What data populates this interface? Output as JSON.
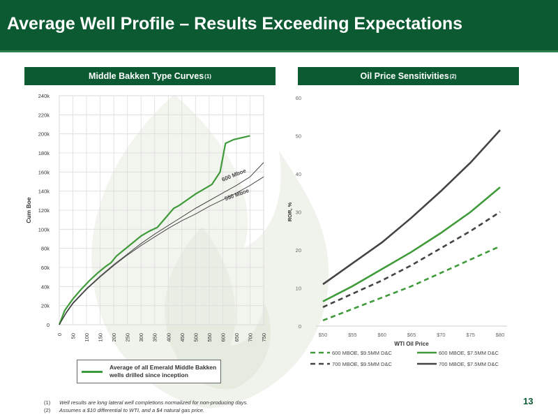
{
  "header": {
    "title": "Average Well Profile – Results Exceeding Expectations"
  },
  "left_panel": {
    "title": "Middle Bakken Type Curves",
    "sup": "(1)"
  },
  "right_panel": {
    "title": "Oil Price Sensitivities",
    "sup": "(2)"
  },
  "legend_left": {
    "label": "Average of all Emerald Middle Bakken wells drilled since inception",
    "color": "#3f9a3a"
  },
  "footnotes": [
    {
      "num": "(1)",
      "text": "Well results are long lateral well completions normalized for non-producing days."
    },
    {
      "num": "(2)",
      "text": "Assumes a $10 differential to WTI, and a $4 natural gas price."
    }
  ],
  "page_number": "13",
  "colors": {
    "header_green": "#0c5a32",
    "bright_green": "#3f9a3a",
    "dark_gray": "#444444"
  },
  "chart_data": [
    {
      "type": "line",
      "ylabel": "Cum Boe",
      "xlabel": "",
      "x_ticks": [
        "0",
        "50",
        "100",
        "150",
        "200",
        "250",
        "300",
        "350",
        "400",
        "450",
        "500",
        "550",
        "600",
        "650",
        "700",
        "750"
      ],
      "y_ticks": [
        "0",
        "20k",
        "40k",
        "60k",
        "80k",
        "100k",
        "120k",
        "140k",
        "160k",
        "180k",
        "200k",
        "220k",
        "240k"
      ],
      "xlim": [
        0,
        750
      ],
      "ylim": [
        0,
        240000
      ],
      "grid": true,
      "series": [
        {
          "name": "Average of all Emerald Middle Bakken wells drilled since inception",
          "color": "#3f9a3a",
          "x": [
            0,
            20,
            50,
            80,
            110,
            140,
            170,
            190,
            210,
            240,
            270,
            300,
            330,
            360,
            390,
            420,
            440,
            470,
            500,
            530,
            560,
            590,
            610,
            640,
            700
          ],
          "y": [
            0,
            15000,
            27000,
            37000,
            46000,
            54000,
            61000,
            65000,
            72000,
            79000,
            86000,
            93000,
            98000,
            102000,
            112000,
            122000,
            125000,
            131000,
            137000,
            142000,
            147000,
            160000,
            190000,
            194000,
            198000
          ]
        },
        {
          "name": "600 Mboe",
          "color": "#333333",
          "x": [
            0,
            25,
            50,
            100,
            150,
            200,
            250,
            300,
            350,
            400,
            450,
            500,
            550,
            600,
            650,
            700,
            750
          ],
          "y": [
            0,
            13000,
            23000,
            38000,
            51000,
            63000,
            74000,
            85000,
            95000,
            104000,
            113000,
            122000,
            130000,
            138000,
            146000,
            155000,
            170000
          ]
        },
        {
          "name": "550 Mboe",
          "color": "#333333",
          "x": [
            0,
            25,
            50,
            100,
            150,
            200,
            250,
            300,
            350,
            400,
            450,
            500,
            550,
            600,
            650,
            700,
            750
          ],
          "y": [
            0,
            12000,
            22000,
            37000,
            50000,
            62000,
            73000,
            83000,
            92000,
            101000,
            109000,
            116000,
            124000,
            131000,
            138000,
            146000,
            155000
          ]
        }
      ],
      "annotations": [
        "600 Mboe",
        "550 Mboe"
      ]
    },
    {
      "type": "line",
      "xlabel": "WTI Oil Price",
      "ylabel": "ROR, %",
      "categories": [
        "$50",
        "$55",
        "$60",
        "$65",
        "$70",
        "$75",
        "$80"
      ],
      "y_ticks": [
        "0",
        "10",
        "20",
        "30",
        "40",
        "50",
        "60"
      ],
      "ylim": [
        0,
        60
      ],
      "grid": false,
      "legend_position": "bottom",
      "series": [
        {
          "name": "600 MBOE, $9.5MM D&C",
          "color": "#3f9a3a",
          "dashed": true,
          "values": [
            1.5,
            4.5,
            7.5,
            10.5,
            14.0,
            17.5,
            21.0
          ]
        },
        {
          "name": "600 MBOE, $7.5MM D&C",
          "color": "#3f9a3a",
          "dashed": false,
          "values": [
            6.5,
            10.5,
            15.0,
            19.5,
            24.5,
            30.0,
            36.5
          ]
        },
        {
          "name": "700 MBOE, $9.5MM D&C",
          "color": "#444444",
          "dashed": true,
          "values": [
            5.0,
            8.5,
            12.0,
            16.0,
            20.5,
            25.0,
            30.0
          ]
        },
        {
          "name": "700 MBOE, $7.5MM D&C",
          "color": "#444444",
          "dashed": false,
          "values": [
            11.0,
            16.5,
            22.0,
            28.5,
            35.5,
            43.0,
            51.5
          ]
        }
      ]
    }
  ]
}
